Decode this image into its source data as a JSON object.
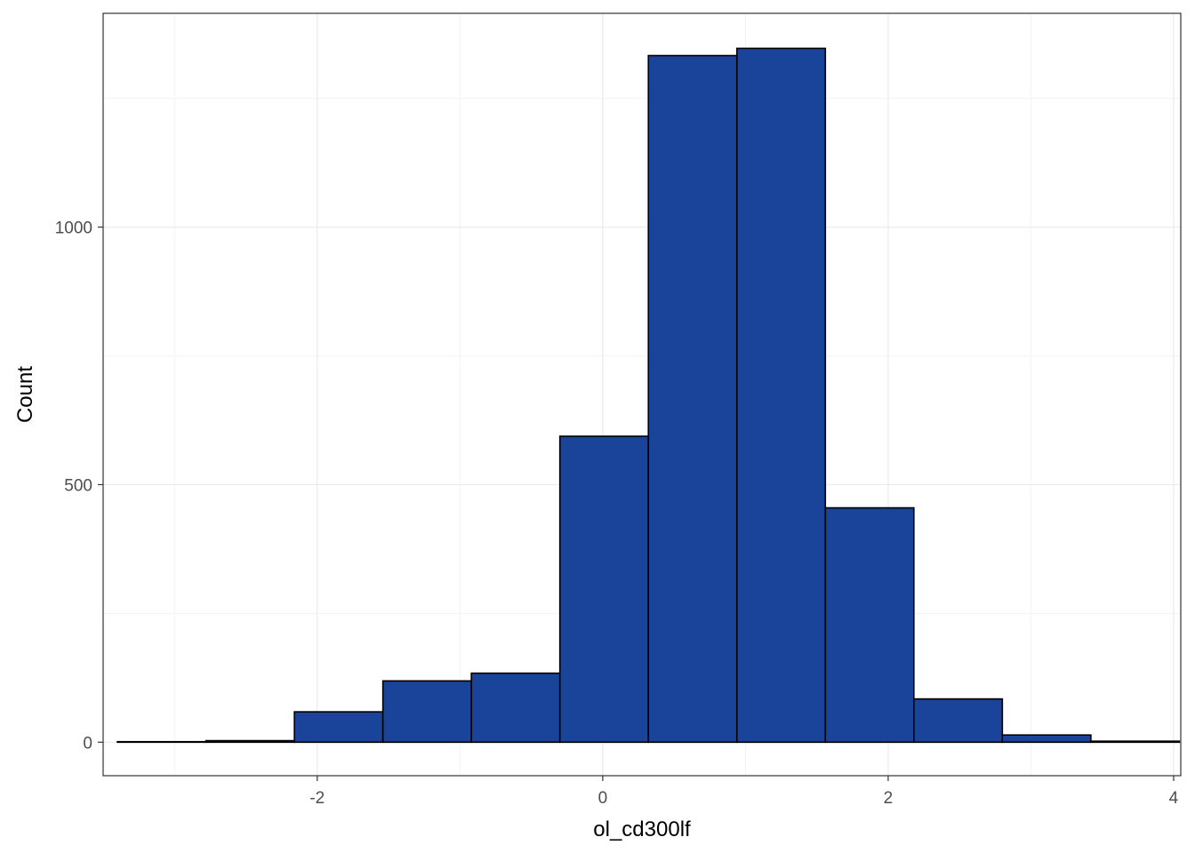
{
  "chart_data": {
    "type": "bar",
    "subtype": "histogram",
    "title": "",
    "xlabel": "ol_cd300lf",
    "ylabel": "Count",
    "xlim": [
      -3.5,
      4.05
    ],
    "ylim": [
      -65,
      1415
    ],
    "x_ticks": [
      -2,
      0,
      2,
      4
    ],
    "x_tick_labels": [
      "-2",
      "0",
      "2",
      "4"
    ],
    "y_ticks": [
      0,
      500,
      1000
    ],
    "y_tick_labels": [
      "0",
      "500",
      "1000"
    ],
    "grid": true,
    "bins": [
      {
        "x0": -3.4,
        "x1": -2.78,
        "count": 1
      },
      {
        "x0": -2.78,
        "x1": -2.16,
        "count": 3
      },
      {
        "x0": -2.16,
        "x1": -1.54,
        "count": 59
      },
      {
        "x0": -1.54,
        "x1": -0.92,
        "count": 119
      },
      {
        "x0": -0.92,
        "x1": -0.3,
        "count": 134
      },
      {
        "x0": -0.3,
        "x1": 0.32,
        "count": 594
      },
      {
        "x0": 0.32,
        "x1": 0.94,
        "count": 1333
      },
      {
        "x0": 0.94,
        "x1": 1.56,
        "count": 1347
      },
      {
        "x0": 1.56,
        "x1": 2.18,
        "count": 455
      },
      {
        "x0": 2.18,
        "x1": 2.8,
        "count": 84
      },
      {
        "x0": 2.8,
        "x1": 3.42,
        "count": 14
      },
      {
        "x0": 3.42,
        "x1": 4.04,
        "count": 2
      }
    ],
    "colors": {
      "fill": "#1A4499",
      "stroke": "#000000",
      "grid_major": "#EBEBEB",
      "grid_minor": "#F3F3F3",
      "panel_border": "#333333",
      "tick_text": "#4D4D4D"
    }
  }
}
